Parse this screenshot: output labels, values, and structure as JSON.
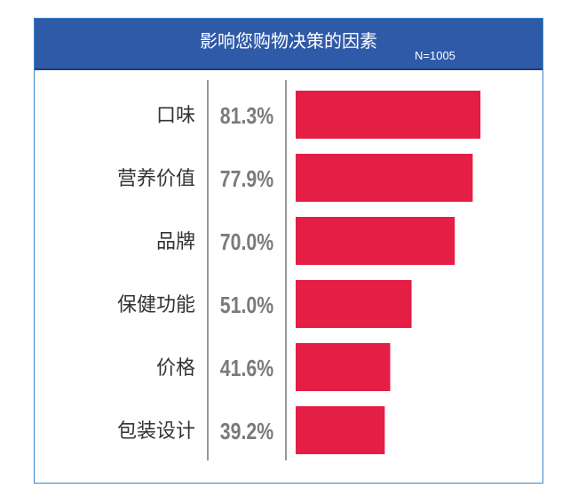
{
  "chart_data": {
    "type": "bar",
    "orientation": "horizontal",
    "title": "影响您购物决策的因素",
    "subtitle": "N=1005",
    "categories": [
      "口味",
      "营养价值",
      "品牌",
      "保健功能",
      "价格",
      "包装设计"
    ],
    "values": [
      81.3,
      77.9,
      70.0,
      51.0,
      41.6,
      39.2
    ],
    "value_labels": [
      "81.3%",
      "77.9%",
      "70.0%",
      "51.0%",
      "41.6%",
      "39.2%"
    ],
    "xlim": [
      0,
      100
    ],
    "grid": false,
    "legend": "none",
    "colors": {
      "bar": "#e51e45",
      "header": "#2f5aa8",
      "frame": "#3a86c8",
      "value_text": "#7a7a7a",
      "category_text": "#333333"
    }
  }
}
